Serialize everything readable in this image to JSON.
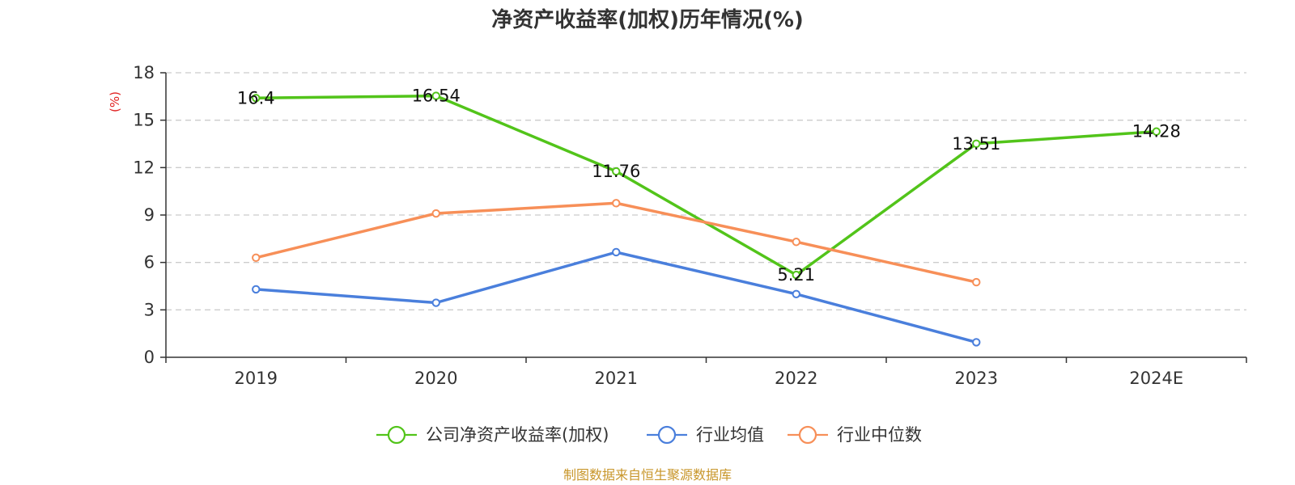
{
  "chart_data": {
    "type": "line",
    "title": "净资产收益率(加权)历年情况(%)",
    "ylabel": "(%)",
    "xlabel": "",
    "categories": [
      "2019",
      "2020",
      "2021",
      "2022",
      "2023",
      "2024E"
    ],
    "ylim": [
      0,
      18
    ],
    "yticks": [
      0,
      3,
      6,
      9,
      12,
      15,
      18
    ],
    "grid": true,
    "legend_position": "bottom",
    "series": [
      {
        "name": "公司净资产收益率(加权)",
        "color": "#52c41a",
        "values": [
          16.4,
          16.54,
          11.76,
          5.21,
          13.51,
          14.28
        ],
        "labels": [
          "16.4",
          "16.54",
          "11.76",
          "5.21",
          "13.51",
          "14.28"
        ],
        "show_labels": true
      },
      {
        "name": "行业均值",
        "color": "#4a7fdc",
        "values": [
          4.3,
          3.45,
          6.65,
          4.0,
          0.95,
          null
        ],
        "show_labels": false
      },
      {
        "name": "行业中位数",
        "color": "#f78f58",
        "values": [
          6.3,
          9.1,
          9.75,
          7.3,
          4.75,
          null
        ],
        "show_labels": false
      }
    ],
    "source": "制图数据来自恒生聚源数据库",
    "colors": {
      "axis": "#333333",
      "grid": "#cccccc",
      "unit": "#e02020",
      "source": "#c8962a"
    }
  }
}
